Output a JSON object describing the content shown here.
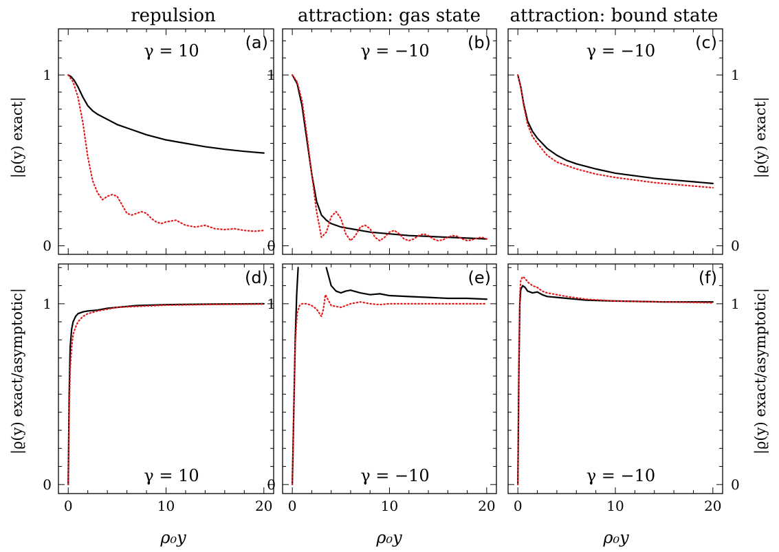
{
  "columns": [
    "repulsion",
    "attraction: gas state",
    "attraction: bound state"
  ],
  "ylabel_top": "|ϱ(y) exact|",
  "ylabel_bottom": "|ϱ(y) exact/asymptotic|",
  "xlabel": "ρ₀y",
  "colors": {
    "black": "#000000",
    "red": "#e31a1c"
  },
  "chart_data": [
    {
      "panel": "(a)",
      "row": 0,
      "col": 0,
      "type": "line",
      "gamma_label": "γ = 10",
      "xlim": [
        -1,
        21
      ],
      "ylim": [
        -0.05,
        1.27
      ],
      "yticks": [
        0,
        1
      ],
      "xticks": [
        0,
        10,
        20
      ],
      "series": [
        {
          "color": "black",
          "style": "solid",
          "x": [
            0,
            0.3,
            0.6,
            1,
            1.5,
            2,
            2.5,
            3,
            4,
            5,
            6,
            8,
            10,
            12,
            14,
            16,
            18,
            20
          ],
          "y": [
            1,
            0.99,
            0.97,
            0.93,
            0.87,
            0.82,
            0.79,
            0.77,
            0.74,
            0.71,
            0.69,
            0.65,
            0.62,
            0.6,
            0.58,
            0.565,
            0.553,
            0.543
          ]
        },
        {
          "color": "red",
          "style": "dotted",
          "x": [
            0,
            0.5,
            1,
            1.5,
            2,
            2.5,
            3,
            3.5,
            4,
            4.5,
            5,
            5.5,
            6,
            6.5,
            7,
            7.5,
            8,
            8.5,
            9,
            9.5,
            10,
            11,
            12,
            13,
            14,
            15,
            16,
            17,
            18,
            19,
            20
          ],
          "y": [
            1,
            0.96,
            0.87,
            0.72,
            0.52,
            0.38,
            0.31,
            0.27,
            0.29,
            0.3,
            0.29,
            0.24,
            0.19,
            0.18,
            0.19,
            0.2,
            0.19,
            0.16,
            0.14,
            0.13,
            0.14,
            0.15,
            0.12,
            0.11,
            0.12,
            0.1,
            0.095,
            0.1,
            0.09,
            0.085,
            0.09
          ]
        }
      ]
    },
    {
      "panel": "(b)",
      "row": 0,
      "col": 1,
      "type": "line",
      "gamma_label": "γ = −10",
      "xlim": [
        -1,
        21
      ],
      "ylim": [
        -0.05,
        1.27
      ],
      "yticks": [
        0,
        1
      ],
      "xticks": [
        0,
        10,
        20
      ],
      "series": [
        {
          "color": "black",
          "style": "solid",
          "x": [
            0,
            0.5,
            1,
            1.5,
            2,
            2.5,
            3,
            3.5,
            4,
            4.5,
            5,
            6,
            7,
            8,
            10,
            12,
            14,
            16,
            18,
            20
          ],
          "y": [
            1,
            0.95,
            0.82,
            0.62,
            0.42,
            0.26,
            0.18,
            0.15,
            0.13,
            0.12,
            0.11,
            0.1,
            0.09,
            0.08,
            0.07,
            0.06,
            0.055,
            0.05,
            0.045,
            0.04
          ]
        },
        {
          "color": "red",
          "style": "dotted",
          "x": [
            0,
            0.5,
            1,
            1.5,
            2,
            2.5,
            3,
            3.5,
            4,
            4.5,
            5,
            5.5,
            6,
            6.5,
            7,
            7.5,
            8,
            8.5,
            9,
            9.5,
            10,
            10.5,
            11,
            11.5,
            12,
            12.5,
            13,
            13.5,
            14,
            14.5,
            15,
            15.5,
            16,
            16.5,
            17,
            17.5,
            18,
            18.5,
            19,
            19.5,
            20
          ],
          "y": [
            1,
            0.96,
            0.85,
            0.65,
            0.42,
            0.2,
            0.05,
            0.08,
            0.17,
            0.2,
            0.16,
            0.07,
            0.03,
            0.06,
            0.11,
            0.12,
            0.1,
            0.05,
            0.03,
            0.05,
            0.08,
            0.09,
            0.07,
            0.04,
            0.03,
            0.04,
            0.06,
            0.07,
            0.06,
            0.04,
            0.03,
            0.035,
            0.05,
            0.06,
            0.055,
            0.04,
            0.03,
            0.035,
            0.045,
            0.05,
            0.04
          ]
        }
      ]
    },
    {
      "panel": "(c)",
      "row": 0,
      "col": 2,
      "type": "line",
      "gamma_label": "γ = −10",
      "xlim": [
        -1,
        21
      ],
      "ylim": [
        -0.05,
        1.27
      ],
      "yticks": [
        0,
        1
      ],
      "xticks": [
        0,
        10,
        20
      ],
      "series": [
        {
          "color": "black",
          "style": "solid",
          "x": [
            0,
            0.3,
            0.6,
            1,
            1.5,
            2,
            3,
            4,
            5,
            6,
            8,
            10,
            12,
            14,
            16,
            18,
            20
          ],
          "y": [
            1,
            0.93,
            0.83,
            0.73,
            0.67,
            0.63,
            0.57,
            0.53,
            0.5,
            0.48,
            0.45,
            0.425,
            0.41,
            0.395,
            0.385,
            0.375,
            0.365
          ]
        },
        {
          "color": "red",
          "style": "dotted",
          "x": [
            0,
            0.3,
            0.6,
            1,
            1.5,
            2,
            3,
            4,
            5,
            6,
            8,
            10,
            12,
            14,
            16,
            18,
            20
          ],
          "y": [
            1,
            0.93,
            0.82,
            0.71,
            0.64,
            0.6,
            0.53,
            0.49,
            0.47,
            0.45,
            0.42,
            0.4,
            0.385,
            0.37,
            0.36,
            0.35,
            0.34
          ]
        }
      ]
    },
    {
      "panel": "(d)",
      "row": 1,
      "col": 0,
      "type": "line",
      "gamma_label": "γ = 10",
      "xlim": [
        -1,
        21
      ],
      "ylim": [
        -0.05,
        1.22
      ],
      "yticks": [
        0,
        1
      ],
      "xticks": [
        0,
        10,
        20
      ],
      "series": [
        {
          "color": "black",
          "style": "solid",
          "x": [
            0,
            0.1,
            0.2,
            0.35,
            0.5,
            0.75,
            1,
            1.5,
            2,
            3,
            4,
            5,
            7,
            10,
            15,
            20
          ],
          "y": [
            0,
            0.5,
            0.76,
            0.86,
            0.9,
            0.93,
            0.945,
            0.955,
            0.96,
            0.965,
            0.975,
            0.98,
            0.99,
            0.995,
            0.998,
            1
          ]
        },
        {
          "color": "red",
          "style": "dotted",
          "x": [
            0,
            0.1,
            0.2,
            0.35,
            0.5,
            0.75,
            1,
            1.5,
            2,
            3,
            4,
            5,
            7,
            10,
            15,
            20
          ],
          "y": [
            0,
            0.4,
            0.64,
            0.76,
            0.83,
            0.87,
            0.9,
            0.93,
            0.945,
            0.96,
            0.97,
            0.98,
            0.985,
            0.992,
            0.996,
            0.998
          ]
        }
      ]
    },
    {
      "panel": "(e)",
      "row": 1,
      "col": 1,
      "type": "line",
      "gamma_label": "γ = −10",
      "xlim": [
        -1,
        21
      ],
      "ylim": [
        -0.05,
        1.22
      ],
      "yticks": [
        0,
        1
      ],
      "xticks": [
        0,
        10,
        20
      ],
      "series": [
        {
          "color": "black",
          "style": "solid",
          "x": [
            0,
            0.15,
            0.3,
            0.45,
            0.6
          ],
          "y": [
            0,
            0.4,
            0.8,
            1.05,
            1.2
          ]
        },
        {
          "color": "black",
          "style": "solid",
          "x": [
            3.5,
            4,
            4.5,
            5,
            5.5,
            6,
            7,
            8,
            9,
            10,
            12,
            14,
            16,
            18,
            20
          ],
          "y": [
            1.2,
            1.1,
            1.07,
            1.06,
            1.07,
            1.075,
            1.06,
            1.05,
            1.055,
            1.045,
            1.04,
            1.035,
            1.03,
            1.03,
            1.025
          ]
        },
        {
          "color": "red",
          "style": "dotted",
          "x": [
            0,
            0.15,
            0.3,
            0.5,
            0.75,
            1,
            1.5,
            2,
            2.5,
            3,
            3.2,
            3.4,
            3.6,
            4,
            5,
            6,
            7,
            8,
            9,
            10,
            12,
            14,
            16,
            18,
            20
          ],
          "y": [
            0,
            0.4,
            0.78,
            0.95,
            0.99,
            1,
            1,
            0.99,
            0.97,
            0.93,
            0.97,
            1.05,
            1.03,
            0.99,
            0.98,
            1,
            1.01,
            1,
            0.995,
            1,
            1.0,
            1.0,
            1.0,
            1.0,
            1.0
          ]
        }
      ]
    },
    {
      "panel": "(f)",
      "row": 1,
      "col": 2,
      "type": "line",
      "gamma_label": "γ = −10",
      "xlim": [
        -1,
        21
      ],
      "ylim": [
        -0.05,
        1.22
      ],
      "yticks": [
        0,
        1
      ],
      "xticks": [
        0,
        10,
        20
      ],
      "series": [
        {
          "color": "black",
          "style": "solid",
          "x": [
            0,
            0.1,
            0.2,
            0.3,
            0.5,
            0.75,
            1,
            1.5,
            2,
            2.5,
            3,
            4,
            5,
            7,
            10,
            15,
            20
          ],
          "y": [
            0,
            0.6,
            1.0,
            1.08,
            1.1,
            1.09,
            1.07,
            1.06,
            1.065,
            1.05,
            1.04,
            1.035,
            1.03,
            1.02,
            1.015,
            1.01,
            1.01
          ]
        },
        {
          "color": "red",
          "style": "dotted",
          "x": [
            0,
            0.1,
            0.2,
            0.3,
            0.5,
            0.75,
            1,
            1.5,
            2,
            2.5,
            3,
            4,
            5,
            7,
            10,
            15,
            20
          ],
          "y": [
            0,
            0.65,
            1.05,
            1.13,
            1.15,
            1.14,
            1.12,
            1.1,
            1.09,
            1.07,
            1.06,
            1.05,
            1.04,
            1.025,
            1.015,
            1.01,
            1.005
          ]
        }
      ]
    }
  ]
}
